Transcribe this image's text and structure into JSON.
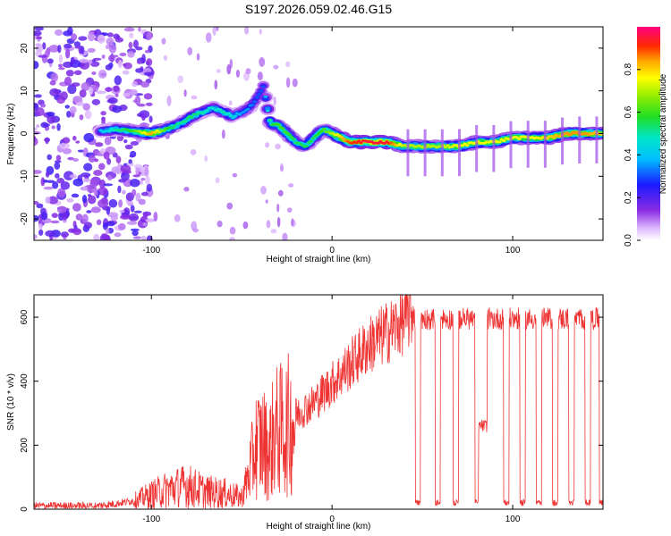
{
  "title": "S197.2026.059.02.46.G15",
  "chart_data": [
    {
      "type": "heatmap",
      "name": "spectrogram",
      "xlabel": "Height of straight line (km)",
      "ylabel": "Frequency (Hz)",
      "xlim": [
        -165,
        150
      ],
      "ylim": [
        -25,
        25
      ],
      "xticks": [
        -100,
        0,
        100
      ],
      "yticks": [
        -20,
        -10,
        0,
        10,
        20
      ],
      "colorbar": {
        "label": "Normalized spectral amplitude",
        "range": [
          0,
          1
        ],
        "ticks": [
          0.0,
          0.2,
          0.4,
          0.6,
          0.8
        ],
        "tick_labels": [
          "0.0",
          "0.2",
          "0.4",
          "0.6",
          "0.8"
        ]
      },
      "ridge": {
        "x": [
          -128,
          -120,
          -110,
          -100,
          -92,
          -85,
          -78,
          -72,
          -66,
          -60,
          -55,
          -50,
          -46,
          -42,
          -38,
          -34,
          -30,
          -25,
          -20,
          -15,
          -10,
          -5,
          0,
          10,
          20,
          30,
          40,
          50,
          60,
          70,
          80,
          90,
          100,
          110,
          120,
          130,
          140,
          150
        ],
        "y": [
          0.5,
          1,
          0.5,
          0,
          1,
          2,
          4,
          5,
          6,
          5,
          4,
          5,
          6,
          8,
          11,
          2,
          2,
          0,
          -2,
          -3,
          -1,
          1,
          0,
          -2,
          -2,
          -2,
          -3,
          -3,
          -3,
          -3,
          -2,
          -2,
          -1,
          -1,
          -1,
          0,
          0,
          0
        ],
        "amplitude": [
          0.4,
          0.5,
          0.6,
          0.85,
          0.6,
          0.5,
          0.55,
          0.5,
          0.45,
          0.5,
          0.45,
          0.35,
          0.35,
          0.3,
          0.3,
          0.55,
          0.6,
          0.6,
          0.55,
          0.55,
          0.55,
          0.6,
          0.7,
          0.9,
          0.95,
          0.95,
          0.7,
          0.7,
          0.7,
          0.75,
          0.75,
          0.75,
          0.75,
          0.75,
          0.8,
          0.85,
          0.85,
          0.8
        ]
      },
      "noise_region_x": [
        -165,
        -110
      ],
      "noise_amplitude_range": [
        0.0,
        0.2
      ]
    },
    {
      "type": "line",
      "name": "snr",
      "xlabel": "Height of straight line (km)",
      "ylabel": "SNR (10 * v/v)",
      "xlim": [
        -165,
        150
      ],
      "ylim": [
        0,
        670
      ],
      "xticks": [
        -100,
        0,
        100
      ],
      "yticks": [
        0,
        200,
        400,
        600
      ],
      "color": "#ee3333",
      "envelope": {
        "x": [
          -165,
          -130,
          -120,
          -110,
          -100,
          -90,
          -80,
          -70,
          -60,
          -50,
          -46,
          -42,
          -38,
          -35,
          -32,
          -28,
          -20,
          -10,
          0,
          10,
          20,
          30,
          40,
          45,
          50,
          55
        ],
        "y": [
          12,
          12,
          18,
          28,
          50,
          70,
          80,
          60,
          55,
          40,
          120,
          220,
          230,
          190,
          260,
          270,
          300,
          340,
          400,
          460,
          520,
          560,
          600,
          630,
          620,
          600
        ]
      },
      "dropouts": [
        [
          46,
          49
        ],
        [
          57,
          60
        ],
        [
          67,
          70
        ],
        [
          79,
          86
        ],
        [
          95,
          98
        ],
        [
          104,
          107
        ],
        [
          113,
          116
        ],
        [
          122,
          125
        ],
        [
          131,
          134
        ],
        [
          140,
          143
        ],
        [
          148,
          150
        ]
      ],
      "dropout_level": 20,
      "high_level": 600,
      "partial_dropout": {
        "x": [
          79,
          86
        ],
        "y": 260
      }
    }
  ]
}
